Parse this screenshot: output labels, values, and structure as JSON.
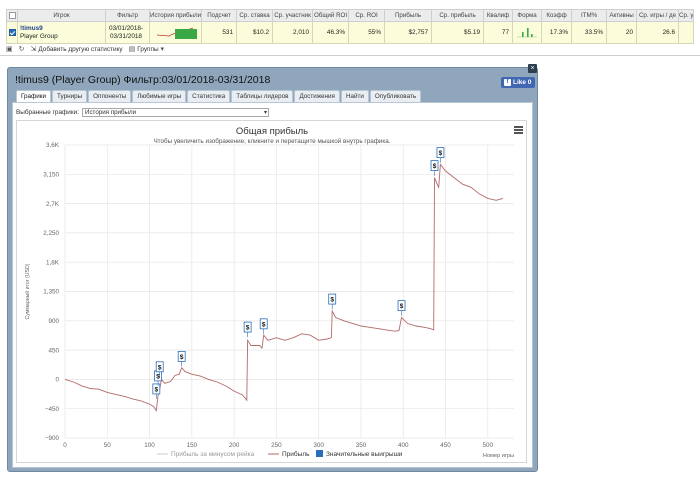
{
  "stats_table": {
    "headers": [
      "Игрок",
      "Фильтр",
      "История прибыли",
      "Подсчет",
      "Ср. ставка",
      "Ср. участник",
      "Общий ROI",
      "Ср. ROI",
      "Прибыль",
      "Ср. прибыль",
      "Квалиф",
      "Форма",
      "Коэфф",
      "ITM%",
      "Активны",
      "Ср. игры / де",
      "Ср. у"
    ],
    "row": {
      "checked": true,
      "player_name": "!timus9",
      "player_group": "Player Group",
      "filter_from": "03/01/2018-",
      "filter_to": "03/31/2018",
      "count": "531",
      "avg_stake": "$10.2",
      "avg_entrants": "2,010",
      "total_roi": "46.3%",
      "avg_roi": "55%",
      "profit": "$2,757",
      "avg_profit": "$5.19",
      "ability": "77",
      "rating": "17.3%",
      "itm": "33.5%",
      "active": "20",
      "avg_games_day": "26.6",
      "trailing": ""
    }
  },
  "toolbar": {
    "add_stat_label": "Добавить другую статистику",
    "groups_label": "Группы"
  },
  "panel": {
    "title": "!timus9 (Player Group) Фильтр:03/01/2018-03/31/2018",
    "like_label": "Like 0",
    "like_icon": "f",
    "close_label": "×",
    "tabs": [
      "Графики",
      "Турниры",
      "Оппоненты",
      "Любимые игры",
      "Статистика",
      "Таблицы лидеров",
      "Достижения",
      "Найти",
      "Опубликовать"
    ],
    "active_tab": 0,
    "selected_graphs_label": "Выбранные графики:",
    "selected_graph_value": "История прибыли"
  },
  "chart_data": {
    "type": "line",
    "title": "Общая прибыль",
    "subtitle": "Чтобы увеличить изображение, кликните и перетащите мышкой внутрь графика.",
    "xlabel": "Номер игры",
    "ylabel": "Суммарный итог (USD)",
    "xlim": [
      0,
      531
    ],
    "ylim": [
      -900,
      3600
    ],
    "x_ticks": [
      0,
      50,
      100,
      150,
      200,
      250,
      300,
      350,
      400,
      450,
      500
    ],
    "y_ticks": [
      -900,
      -450,
      0,
      450,
      900,
      1350,
      1800,
      2250,
      2700,
      3150,
      3600
    ],
    "y_tick_labels": [
      "−900",
      "−450",
      "0",
      "450",
      "900",
      "1,350",
      "1,8K",
      "2,250",
      "2,7K",
      "3,150",
      "3,6K"
    ],
    "grid": true,
    "line_color": "#b36a6a",
    "legend": [
      {
        "label": "Прибыль за минусом рейка",
        "color": "#cccccc",
        "kind": "line"
      },
      {
        "label": "Прибыль",
        "color": "#b36a6a",
        "kind": "line"
      },
      {
        "label": "Значительные выигрыши",
        "color": "#2a6ebb",
        "kind": "box"
      }
    ],
    "legend_position": "bottom",
    "series": [
      {
        "name": "Прибыль",
        "points": [
          [
            0,
            0
          ],
          [
            10,
            -40
          ],
          [
            20,
            -100
          ],
          [
            30,
            -140
          ],
          [
            40,
            -150
          ],
          [
            50,
            -200
          ],
          [
            60,
            -230
          ],
          [
            70,
            -260
          ],
          [
            80,
            -300
          ],
          [
            90,
            -330
          ],
          [
            100,
            -380
          ],
          [
            105,
            -420
          ],
          [
            108,
            -480
          ],
          [
            110,
            -250
          ],
          [
            112,
            -150
          ],
          [
            114,
            0
          ],
          [
            118,
            -60
          ],
          [
            125,
            -30
          ],
          [
            130,
            60
          ],
          [
            135,
            80
          ],
          [
            138,
            180
          ],
          [
            142,
            120
          ],
          [
            150,
            80
          ],
          [
            160,
            50
          ],
          [
            170,
            0
          ],
          [
            180,
            -40
          ],
          [
            190,
            -100
          ],
          [
            200,
            -180
          ],
          [
            210,
            -240
          ],
          [
            215,
            -320
          ],
          [
            216,
            600
          ],
          [
            220,
            520
          ],
          [
            230,
            520
          ],
          [
            233,
            480
          ],
          [
            235,
            680
          ],
          [
            240,
            600
          ],
          [
            250,
            640
          ],
          [
            260,
            600
          ],
          [
            270,
            640
          ],
          [
            280,
            700
          ],
          [
            290,
            680
          ],
          [
            300,
            600
          ],
          [
            310,
            620
          ],
          [
            315,
            640
          ],
          [
            316,
            1050
          ],
          [
            320,
            950
          ],
          [
            330,
            900
          ],
          [
            340,
            860
          ],
          [
            350,
            820
          ],
          [
            360,
            800
          ],
          [
            370,
            780
          ],
          [
            380,
            760
          ],
          [
            390,
            740
          ],
          [
            395,
            750
          ],
          [
            398,
            950
          ],
          [
            405,
            860
          ],
          [
            415,
            820
          ],
          [
            425,
            800
          ],
          [
            432,
            780
          ],
          [
            436,
            760
          ],
          [
            437,
            3100
          ],
          [
            440,
            3000
          ],
          [
            442,
            2950
          ],
          [
            444,
            3300
          ],
          [
            450,
            3200
          ],
          [
            460,
            3100
          ],
          [
            470,
            3000
          ],
          [
            480,
            2950
          ],
          [
            490,
            2850
          ],
          [
            500,
            2780
          ],
          [
            510,
            2750
          ],
          [
            518,
            2780
          ]
        ]
      }
    ],
    "big_wins": [
      {
        "x": 108,
        "y": -300
      },
      {
        "x": 110,
        "y": -100
      },
      {
        "x": 112,
        "y": 40
      },
      {
        "x": 138,
        "y": 200
      },
      {
        "x": 216,
        "y": 650
      },
      {
        "x": 235,
        "y": 700
      },
      {
        "x": 316,
        "y": 1080
      },
      {
        "x": 398,
        "y": 980
      },
      {
        "x": 437,
        "y": 3130
      },
      {
        "x": 444,
        "y": 3330
      }
    ],
    "big_win_label": "$"
  }
}
